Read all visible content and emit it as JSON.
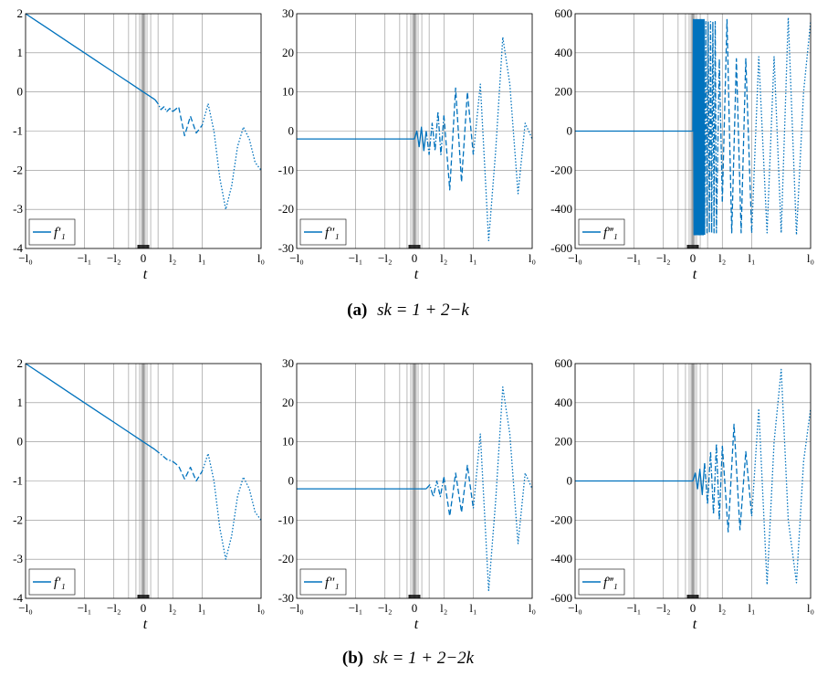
{
  "captions": [
    {
      "label": "(a)",
      "formula": "s_k = 1 + 2^{−k}",
      "label_text": "(a)",
      "formula_text": "sk = 1 + 2−k"
    },
    {
      "label": "(b)",
      "formula": "s_k = 1 + 2^{−2k}",
      "label_text": "(b)",
      "formula_text": "sk = 1 + 2−2k"
    }
  ],
  "colors": {
    "line": "#0072BD",
    "grid": "#8c8c8c",
    "axis": "#000000"
  },
  "chart_data": [
    {
      "type": "line",
      "row": "a",
      "col": 0,
      "legend": "f′₁",
      "xlabel": "t",
      "ylim": [
        -4,
        2
      ],
      "yticks": [
        "-4",
        "-3",
        "-2",
        "-1",
        "0",
        "1",
        "2"
      ],
      "yticks_values": [
        -4,
        -3,
        -2,
        -1,
        0,
        1,
        2
      ],
      "xticks": [
        "−l₀",
        "−l₁",
        "−l₂",
        "0",
        "l₂",
        "l₁",
        "l₀"
      ],
      "xticks_values": [
        -1,
        -0.5,
        -0.25,
        0,
        0.25,
        0.5,
        1
      ],
      "xlim": [
        -1,
        1
      ],
      "grid": true,
      "legend_position": "bottom-left",
      "series": [
        {
          "style": "solid",
          "x": [
            -1,
            -0.9,
            -0.8,
            -0.7,
            -0.6,
            -0.5,
            -0.4,
            -0.3,
            -0.2,
            -0.1,
            0,
            0.05,
            0.1
          ],
          "y": [
            2,
            1.8,
            1.6,
            1.4,
            1.2,
            1.0,
            0.8,
            0.6,
            0.4,
            0.2,
            0,
            -0.1,
            -0.2
          ]
        },
        {
          "style": "dashdot",
          "x": [
            0.1,
            0.125,
            0.15,
            0.175,
            0.2,
            0.225,
            0.25
          ],
          "y": [
            -0.2,
            -0.3,
            -0.45,
            -0.38,
            -0.5,
            -0.42,
            -0.5
          ]
        },
        {
          "style": "dashed",
          "x": [
            0.25,
            0.3,
            0.35,
            0.4,
            0.45,
            0.5
          ],
          "y": [
            -0.5,
            -0.38,
            -1.12,
            -0.62,
            -1.05,
            -0.85
          ]
        },
        {
          "style": "dotted",
          "x": [
            0.5,
            0.55,
            0.6,
            0.65,
            0.7,
            0.75,
            0.8,
            0.85,
            0.9,
            0.95,
            1.0
          ],
          "y": [
            -0.85,
            -0.3,
            -1.0,
            -2.2,
            -3.0,
            -2.4,
            -1.4,
            -0.9,
            -1.2,
            -1.8,
            -2.0
          ]
        }
      ]
    },
    {
      "type": "line",
      "row": "a",
      "col": 1,
      "legend": "f″₁",
      "xlabel": "t",
      "ylim": [
        -30,
        30
      ],
      "yticks": [
        "-30",
        "-20",
        "-10",
        "0",
        "10",
        "20",
        "30"
      ],
      "yticks_values": [
        -30,
        -20,
        -10,
        0,
        10,
        20,
        30
      ],
      "xticks": [
        "−l₀",
        "−l₁",
        "−l₂",
        "0",
        "l₂",
        "l₁",
        "l₀"
      ],
      "xticks_values": [
        -1,
        -0.5,
        -0.25,
        0,
        0.25,
        0.5,
        1
      ],
      "xlim": [
        -1,
        1
      ],
      "grid": true,
      "legend_position": "bottom-left",
      "series": [
        {
          "style": "solid",
          "x": [
            -1,
            -0.5,
            -0.1,
            0,
            0.02,
            0.04,
            0.06,
            0.08,
            0.1
          ],
          "y": [
            -2,
            -2,
            -2,
            -2,
            0,
            -4,
            1,
            -5,
            0
          ]
        },
        {
          "style": "dashdot",
          "x": [
            0.1,
            0.125,
            0.15,
            0.175,
            0.2,
            0.225,
            0.25
          ],
          "y": [
            0,
            -6,
            2,
            -5,
            5,
            -6,
            4
          ]
        },
        {
          "style": "dashed",
          "x": [
            0.25,
            0.3,
            0.35,
            0.4,
            0.45,
            0.5
          ],
          "y": [
            4,
            -15,
            11,
            -13,
            10,
            -6
          ]
        },
        {
          "style": "dotted",
          "x": [
            0.5,
            0.56,
            0.63,
            0.69,
            0.75,
            0.81,
            0.88,
            0.94,
            1.0
          ],
          "y": [
            -6,
            12,
            -28,
            -5,
            24,
            12,
            -16,
            2,
            -2
          ]
        }
      ]
    },
    {
      "type": "line",
      "row": "a",
      "col": 2,
      "legend": "f‴₁",
      "xlabel": "t",
      "ylim": [
        -600,
        600
      ],
      "yticks": [
        "-600",
        "-400",
        "-200",
        "0",
        "200",
        "400",
        "600"
      ],
      "yticks_values": [
        -600,
        -400,
        -200,
        0,
        200,
        400,
        600
      ],
      "xticks": [
        "−l₀",
        "−l₁",
        "−l₂",
        "0",
        "l₂",
        "l₁",
        "l₀"
      ],
      "xticks_values": [
        -1,
        -0.5,
        -0.25,
        0,
        0.25,
        0.5,
        1
      ],
      "xlim": [
        -1,
        1
      ],
      "grid": true,
      "legend_position": "bottom-left",
      "series": [
        {
          "style": "solid",
          "x": [
            -1,
            -0.5,
            0,
            0.005,
            0.01,
            0.015,
            0.02,
            0.025,
            0.03,
            0.035,
            0.04,
            0.045,
            0.05,
            0.055,
            0.06,
            0.065,
            0.07,
            0.075,
            0.08,
            0.085,
            0.09,
            0.095,
            0.1
          ],
          "y": [
            0,
            0,
            0,
            570,
            -530,
            570,
            -530,
            570,
            -530,
            570,
            -530,
            570,
            -530,
            570,
            -530,
            570,
            -530,
            570,
            -530,
            570,
            -530,
            570,
            -530
          ]
        },
        {
          "style": "dashdot",
          "x": [
            0.1,
            0.11,
            0.12,
            0.13,
            0.14,
            0.15,
            0.16,
            0.17,
            0.18,
            0.19,
            0.2,
            0.225,
            0.25
          ],
          "y": [
            -530,
            560,
            -520,
            560,
            -520,
            560,
            -520,
            560,
            -520,
            560,
            -520,
            370,
            -360
          ]
        },
        {
          "style": "dashed",
          "x": [
            0.25,
            0.29,
            0.33,
            0.37,
            0.41,
            0.45,
            0.5
          ],
          "y": [
            -360,
            570,
            -520,
            370,
            -520,
            370,
            -520
          ]
        },
        {
          "style": "dotted",
          "x": [
            0.5,
            0.56,
            0.63,
            0.69,
            0.75,
            0.81,
            0.88,
            0.94,
            1.0
          ],
          "y": [
            -520,
            380,
            -520,
            380,
            -520,
            580,
            -530,
            200,
            560
          ]
        }
      ]
    },
    {
      "type": "line",
      "row": "b",
      "col": 0,
      "legend": "f′₁",
      "xlabel": "t",
      "ylim": [
        -4,
        2
      ],
      "yticks": [
        "-4",
        "-3",
        "-2",
        "-1",
        "0",
        "1",
        "2"
      ],
      "yticks_values": [
        -4,
        -3,
        -2,
        -1,
        0,
        1,
        2
      ],
      "xticks": [
        "−l₀",
        "−l₁",
        "−l₂",
        "0",
        "l₂",
        "l₁",
        "l₀"
      ],
      "xticks_values": [
        -1,
        -0.5,
        -0.25,
        0,
        0.25,
        0.5,
        1
      ],
      "xlim": [
        -1,
        1
      ],
      "grid": true,
      "legend_position": "bottom-left",
      "series": [
        {
          "style": "solid",
          "x": [
            -1,
            -0.8,
            -0.6,
            -0.4,
            -0.2,
            0,
            0.05,
            0.1
          ],
          "y": [
            2,
            1.6,
            1.2,
            0.8,
            0.4,
            0,
            -0.1,
            -0.2
          ]
        },
        {
          "style": "dashdot",
          "x": [
            0.1,
            0.15,
            0.2,
            0.25
          ],
          "y": [
            -0.2,
            -0.32,
            -0.45,
            -0.5
          ]
        },
        {
          "style": "dashed",
          "x": [
            0.25,
            0.3,
            0.35,
            0.4,
            0.45,
            0.5
          ],
          "y": [
            -0.5,
            -0.62,
            -0.95,
            -0.65,
            -1.0,
            -0.75
          ]
        },
        {
          "style": "dotted",
          "x": [
            0.5,
            0.55,
            0.6,
            0.65,
            0.7,
            0.75,
            0.8,
            0.85,
            0.9,
            0.95,
            1.0
          ],
          "y": [
            -0.75,
            -0.3,
            -1.0,
            -2.2,
            -3.0,
            -2.4,
            -1.4,
            -0.9,
            -1.2,
            -1.8,
            -2.0
          ]
        }
      ]
    },
    {
      "type": "line",
      "row": "b",
      "col": 1,
      "legend": "f″₁",
      "xlabel": "t",
      "ylim": [
        -30,
        30
      ],
      "yticks": [
        "-30",
        "-20",
        "-10",
        "0",
        "10",
        "20",
        "30"
      ],
      "yticks_values": [
        -30,
        -20,
        -10,
        0,
        10,
        20,
        30
      ],
      "xticks": [
        "−l₀",
        "−l₁",
        "−l₂",
        "0",
        "l₂",
        "l₁",
        "l₀"
      ],
      "xticks_values": [
        -1,
        -0.5,
        -0.25,
        0,
        0.25,
        0.5,
        1
      ],
      "xlim": [
        -1,
        1
      ],
      "grid": true,
      "legend_position": "bottom-left",
      "series": [
        {
          "style": "solid",
          "x": [
            -1,
            -0.5,
            0,
            0.05,
            0.1
          ],
          "y": [
            -2,
            -2,
            -2,
            -2,
            -2
          ]
        },
        {
          "style": "dashdot",
          "x": [
            0.1,
            0.13,
            0.16,
            0.19,
            0.22,
            0.25
          ],
          "y": [
            -2,
            -1,
            -4,
            0,
            -4,
            1
          ]
        },
        {
          "style": "dashed",
          "x": [
            0.25,
            0.3,
            0.35,
            0.4,
            0.45,
            0.5
          ],
          "y": [
            1,
            -9,
            2,
            -8,
            4,
            -7
          ]
        },
        {
          "style": "dotted",
          "x": [
            0.5,
            0.56,
            0.63,
            0.69,
            0.75,
            0.81,
            0.88,
            0.94,
            1.0
          ],
          "y": [
            -7,
            12,
            -28,
            -5,
            24,
            12,
            -16,
            2,
            -2
          ]
        }
      ]
    },
    {
      "type": "line",
      "row": "b",
      "col": 2,
      "legend": "f‴₁",
      "xlabel": "t",
      "ylim": [
        -600,
        600
      ],
      "yticks": [
        "-600",
        "-400",
        "-200",
        "0",
        "200",
        "400",
        "600"
      ],
      "yticks_values": [
        -600,
        -400,
        -200,
        0,
        200,
        400,
        600
      ],
      "xticks": [
        "−l₀",
        "−l₁",
        "−l₂",
        "0",
        "l₂",
        "l₁",
        "l₀"
      ],
      "xticks_values": [
        -1,
        -0.5,
        -0.25,
        0,
        0.25,
        0.5,
        1
      ],
      "xlim": [
        -1,
        1
      ],
      "grid": true,
      "legend_position": "bottom-left",
      "series": [
        {
          "style": "solid",
          "x": [
            -1,
            -0.5,
            0,
            0.02,
            0.04,
            0.06,
            0.08,
            0.1
          ],
          "y": [
            0,
            0,
            0,
            40,
            -40,
            60,
            -70,
            90
          ]
        },
        {
          "style": "dashdot",
          "x": [
            0.1,
            0.125,
            0.15,
            0.175,
            0.2,
            0.225,
            0.25
          ],
          "y": [
            90,
            -120,
            150,
            -170,
            190,
            -200,
            180
          ]
        },
        {
          "style": "dashed",
          "x": [
            0.25,
            0.3,
            0.35,
            0.4,
            0.45,
            0.5
          ],
          "y": [
            180,
            -260,
            290,
            -250,
            150,
            -180
          ]
        },
        {
          "style": "dotted",
          "x": [
            0.5,
            0.56,
            0.63,
            0.69,
            0.75,
            0.81,
            0.88,
            0.94,
            1.0
          ],
          "y": [
            -180,
            370,
            -530,
            200,
            570,
            -200,
            -520,
            100,
            370
          ]
        }
      ]
    }
  ]
}
